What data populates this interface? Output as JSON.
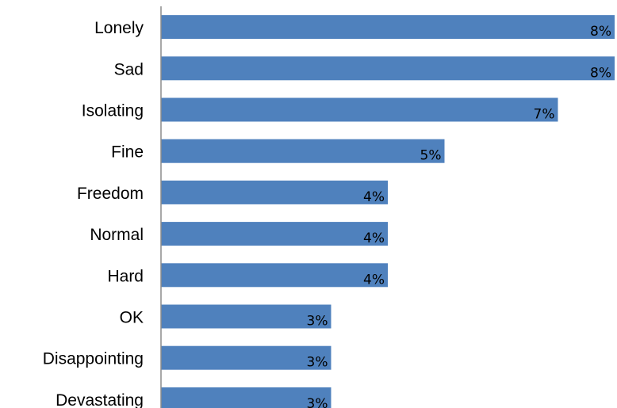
{
  "chart_data": {
    "type": "bar",
    "orientation": "horizontal",
    "categories": [
      "Lonely",
      "Sad",
      "Isolating",
      "Fine",
      "Freedom",
      "Normal",
      "Hard",
      "OK",
      "Disappointing",
      "Devastating"
    ],
    "values": [
      8,
      8,
      7,
      5,
      4,
      4,
      4,
      3,
      3,
      3
    ],
    "value_labels": [
      "8%",
      "8%",
      "7%",
      "5%",
      "4%",
      "4%",
      "4%",
      "3%",
      "3%",
      "3%"
    ],
    "xlim": [
      0,
      8
    ],
    "grid": false,
    "bar_color": "#4f81bd",
    "axis_color": "#8c8c8c",
    "title": "",
    "xlabel": "",
    "ylabel": ""
  }
}
